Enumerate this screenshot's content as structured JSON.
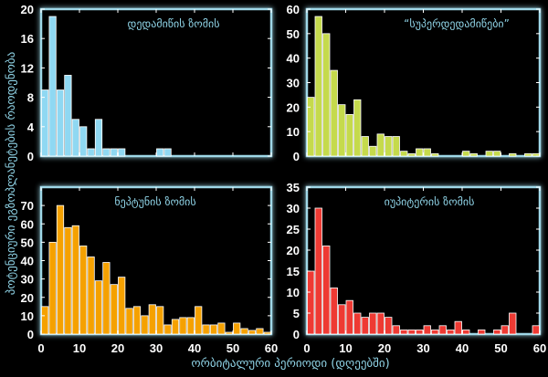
{
  "chart_data": [
    {
      "type": "bar",
      "title": "დედამიწის ზომის",
      "color": "#8fd8f2",
      "bin_width": 2,
      "xlim": [
        0,
        60
      ],
      "ylim": [
        0,
        20
      ],
      "yticks": [
        0,
        4,
        8,
        12,
        16,
        20
      ],
      "values": [
        9,
        19,
        9,
        11,
        5,
        4,
        1,
        5,
        1,
        1,
        1,
        0,
        0,
        0,
        0,
        1,
        1,
        0,
        0,
        0,
        0,
        0,
        0,
        0,
        0,
        0,
        0,
        0,
        0,
        0
      ]
    },
    {
      "type": "bar",
      "title": "“სუპერდედამიწები”",
      "color": "#c5da4c",
      "bin_width": 2,
      "xlim": [
        0,
        60
      ],
      "ylim": [
        0,
        60
      ],
      "yticks": [
        0,
        10,
        20,
        30,
        40,
        50,
        60
      ],
      "values": [
        24,
        57,
        50,
        35,
        21,
        17,
        23,
        8,
        4,
        9,
        8,
        8,
        2,
        1,
        3,
        3,
        1,
        0,
        0,
        0,
        2,
        1,
        0,
        2,
        2,
        0,
        1,
        0,
        1,
        1
      ]
    },
    {
      "type": "bar",
      "title": "ნეპტუნის ზომის",
      "color": "#f5a100",
      "bin_width": 2,
      "xlim": [
        0,
        60
      ],
      "ylim": [
        0,
        80
      ],
      "yticks": [
        0,
        10,
        20,
        30,
        40,
        50,
        60,
        70
      ],
      "xticks": [
        0,
        10,
        20,
        30,
        40,
        50,
        60
      ],
      "values": [
        15,
        50,
        70,
        58,
        59,
        48,
        42,
        29,
        39,
        27,
        31,
        14,
        15,
        10,
        16,
        15,
        5,
        8,
        9,
        9,
        15,
        5,
        5,
        6,
        1,
        6,
        3,
        2,
        3,
        1
      ]
    },
    {
      "type": "bar",
      "title": "იუპიტერის ზომის",
      "color": "#ee3a33",
      "bin_width": 2,
      "xlim": [
        0,
        60
      ],
      "ylim": [
        0,
        35
      ],
      "yticks": [
        0,
        5,
        10,
        15,
        20,
        25,
        30,
        35
      ],
      "xticks": [
        0,
        10,
        20,
        30,
        40,
        50,
        60
      ],
      "values": [
        15,
        30,
        21,
        11,
        7,
        8,
        5,
        4,
        5,
        5,
        4,
        2,
        1,
        1,
        1,
        2,
        1,
        2,
        1,
        3,
        1,
        0,
        1,
        0,
        1,
        2,
        5,
        0,
        0,
        2
      ]
    }
  ],
  "labels": {
    "xlabel": "ორბიტალური პერიოდი (დღეებში)",
    "ylabel": "პოტენციური ეგზოპლანეტების რაოდენობა"
  },
  "colors": {
    "frame": "#9fd8e8",
    "background": "#000000"
  }
}
